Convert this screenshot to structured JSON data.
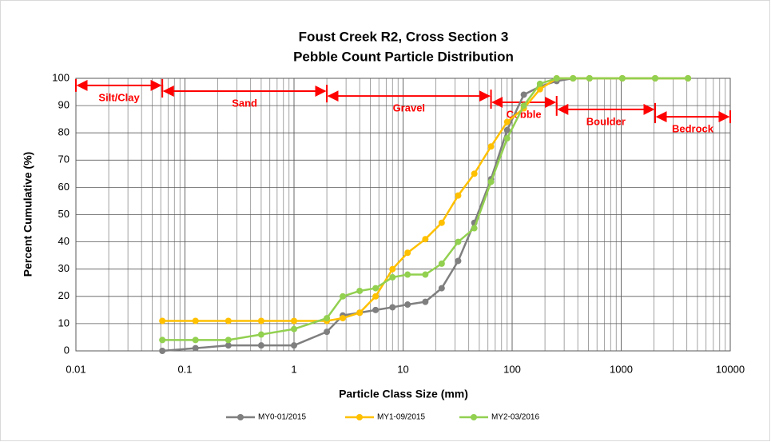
{
  "chart_data": {
    "type": "line",
    "title": "Foust Creek R2, Cross Section 3",
    "subtitle": "Pebble Count Particle Distribution",
    "x_label": "Particle Class Size (mm)",
    "y_label": "Percent Cumulative (%)",
    "x_scale": "log",
    "x": [
      0.062,
      0.125,
      0.25,
      0.5,
      1,
      2,
      2.8,
      4,
      5.6,
      8,
      11,
      16,
      22.6,
      32,
      45,
      64,
      90,
      128,
      180,
      256,
      362,
      512,
      1024,
      2048,
      4096
    ],
    "series": [
      {
        "name": "MY0-01/2015",
        "color": "#7f7f7f",
        "values": [
          0,
          1,
          2,
          2,
          2,
          7,
          13,
          14,
          15,
          16,
          17,
          18,
          23,
          33,
          47,
          63,
          81,
          94,
          97,
          99,
          100,
          100,
          100,
          100,
          100
        ]
      },
      {
        "name": "MY1-09/2015",
        "color": "#ffc000",
        "values": [
          11,
          11,
          11,
          11,
          11,
          11,
          12,
          14,
          20,
          30,
          36,
          41,
          47,
          57,
          65,
          75,
          84,
          89,
          96,
          100,
          100,
          100,
          100,
          100,
          100
        ]
      },
      {
        "name": "MY2-03/2016",
        "color": "#92d050",
        "values": [
          4,
          4,
          4,
          6,
          8,
          12,
          20,
          22,
          23,
          27,
          28,
          28,
          32,
          40,
          45,
          62,
          78,
          90,
          98,
          100,
          100,
          100,
          100,
          100,
          100
        ]
      }
    ],
    "xlim": [
      0.01,
      10000
    ],
    "ylim": [
      0,
      100
    ],
    "xticks": [
      0.01,
      0.1,
      1,
      10,
      100,
      1000,
      10000
    ],
    "xminorticks": [
      0.02,
      0.03,
      0.04,
      0.05,
      0.06,
      0.07,
      0.08,
      0.09,
      0.2,
      0.3,
      0.4,
      0.5,
      0.6,
      0.7,
      0.8,
      0.9,
      2,
      3,
      4,
      5,
      6,
      7,
      8,
      9,
      20,
      30,
      40,
      50,
      60,
      70,
      80,
      90,
      200,
      300,
      400,
      500,
      600,
      700,
      800,
      900,
      2000,
      3000,
      4000,
      5000,
      6000,
      7000,
      8000,
      9000
    ],
    "yticks": [
      0,
      10,
      20,
      30,
      40,
      50,
      60,
      70,
      80,
      90,
      100
    ],
    "grid": true,
    "legend": "bottom",
    "annotation_color": "#ff0000",
    "annotations": [
      {
        "label": "Silt/Clay",
        "from": 0.01,
        "to": 0.062,
        "y": 97.4
      },
      {
        "label": "Sand",
        "from": 0.062,
        "to": 2,
        "y": 95.3
      },
      {
        "label": "Gravel",
        "from": 2,
        "to": 64,
        "y": 93.5
      },
      {
        "label": "Cobble",
        "from": 64,
        "to": 256,
        "y": 91.2
      },
      {
        "label": "Boulder",
        "from": 256,
        "to": 2048,
        "y": 88.6
      },
      {
        "label": "Bedrock",
        "from": 2048,
        "to": 10000,
        "y": 85.9
      }
    ]
  }
}
